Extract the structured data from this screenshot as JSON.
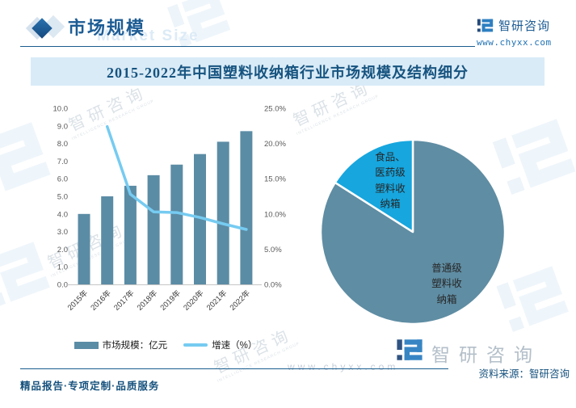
{
  "header": {
    "section_title": "市场规模",
    "section_watermark": "Market Size",
    "brand": {
      "name": "智研咨询",
      "url": "www.chyxx.com"
    }
  },
  "title_bar": {
    "text": "2015-2022年中国塑料收纳箱行业市场规模及结构细分"
  },
  "chart_data": [
    {
      "type": "bar",
      "categories": [
        "2015年",
        "2016年",
        "2017年",
        "2018年",
        "2019年",
        "2020年",
        "2021年",
        "2022年"
      ],
      "series": [
        {
          "name": "市场规模：亿元",
          "type": "bar",
          "axis": "left",
          "color": "#5B8CA5",
          "values": [
            4.0,
            5.0,
            5.6,
            6.2,
            6.8,
            7.4,
            8.1,
            8.7
          ]
        },
        {
          "name": "增速（%）",
          "type": "line",
          "axis": "right",
          "color": "#76CBF1",
          "values": [
            null,
            22.4,
            12.8,
            10.3,
            10.2,
            9.5,
            8.6,
            7.8
          ]
        }
      ],
      "left_axis": {
        "min": 0,
        "max": 10,
        "step": 1
      },
      "right_axis": {
        "min": 0,
        "max": 25,
        "step": 5,
        "suffix": "%"
      },
      "legend_position": "bottom",
      "grid": false
    },
    {
      "type": "pie",
      "slices": [
        {
          "label": "普通级塑料收纳箱",
          "value": 84,
          "color": "#5F8DA3"
        },
        {
          "label": "食品、医药级塑料收纳箱",
          "value": 16,
          "color": "#17A6DE"
        }
      ],
      "start_angle_deg": -90,
      "unit": "%"
    }
  ],
  "footer": {
    "tagline": "精品报告·专项定制·品质服务",
    "source": "资料来源：智研咨询"
  },
  "watermarks": {
    "logo_text": "智研咨询",
    "logo_subtext": "INTELLIGENCE RESEARCH GROUP",
    "url_text": "www.chyxx.com"
  },
  "colors": {
    "accent_dark_blue": "#1B5E8F",
    "title_bar_bg": "#D9EBF7",
    "bar": "#5B8CA5",
    "line": "#76CBF1",
    "pie_main": "#5F8DA3",
    "pie_accent": "#17A6DE",
    "axis_text": "#595959"
  }
}
